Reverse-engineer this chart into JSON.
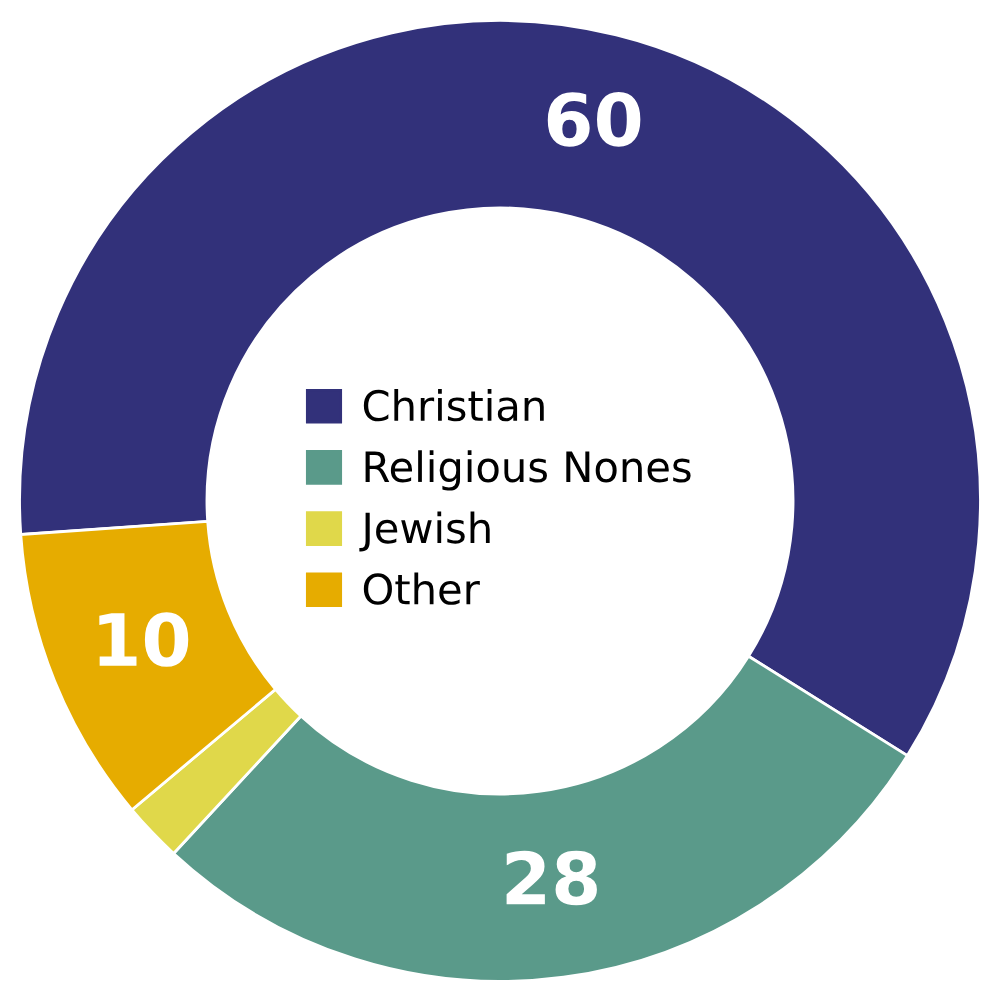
{
  "chart_data": {
    "type": "donut",
    "categories": [
      "Christian",
      "Religious Nones",
      "Jewish",
      "Other"
    ],
    "values": [
      60,
      28,
      2,
      10
    ],
    "value_labels": [
      "60",
      "28",
      null,
      "10"
    ],
    "colors": [
      "#32317a",
      "#5a9a8a",
      "#e0d84a",
      "#e6ac00"
    ],
    "legend": "center"
  }
}
